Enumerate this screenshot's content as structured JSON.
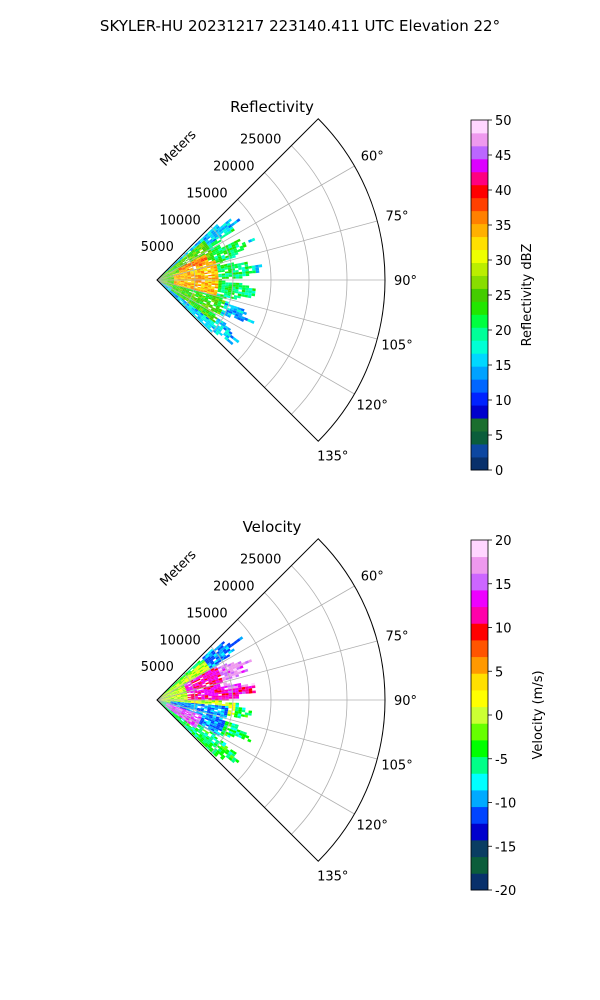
{
  "figure": {
    "suptitle": "SKYLER-HU  20231217  223140.411 UTC Elevation 22°"
  },
  "panels": [
    {
      "title": "Reflectivity",
      "range_axis_label": "Meters",
      "range_ticks": [
        "5000",
        "10000",
        "15000",
        "20000",
        "25000"
      ],
      "azimuth_ticks": [
        "60°",
        "75°",
        "90°",
        "105°",
        "120°",
        "135°"
      ],
      "colorbar": {
        "label": "Reflectivity dBZ",
        "ticks": [
          "0",
          "5",
          "10",
          "15",
          "20",
          "25",
          "30",
          "35",
          "40",
          "45",
          "50"
        ]
      }
    },
    {
      "title": "Velocity",
      "range_axis_label": "Meters",
      "range_ticks": [
        "5000",
        "10000",
        "15000",
        "20000",
        "25000"
      ],
      "azimuth_ticks": [
        "60°",
        "75°",
        "90°",
        "105°",
        "120°",
        "135°"
      ],
      "colorbar": {
        "label": "Velocity (m/s)",
        "ticks": [
          "-20",
          "-15",
          "-10",
          "-5",
          "0",
          "5",
          "10",
          "15",
          "20"
        ]
      }
    }
  ],
  "chart_data": [
    {
      "type": "heatmap",
      "projection": "polar-sector",
      "title": "Reflectivity",
      "azimuth_range_deg": [
        45,
        135
      ],
      "range_limits_m": [
        0,
        30000
      ],
      "range_ticks_m": [
        5000,
        10000,
        15000,
        20000,
        25000
      ],
      "azimuth_ticks_deg": [
        60,
        75,
        90,
        105,
        120,
        135
      ],
      "grid": true,
      "colorbar": {
        "label": "Reflectivity dBZ",
        "vmin": 0,
        "vmax": 50,
        "levels": 25
      },
      "colormap": [
        "#08306b",
        "#0d47a1",
        "#0b5d3b",
        "#1b6e2e",
        "#0000cd",
        "#0022ff",
        "#0066ff",
        "#00a2ff",
        "#00d8ff",
        "#00ffd5",
        "#00ff99",
        "#00ff40",
        "#22e600",
        "#44cc00",
        "#88dd00",
        "#bbee00",
        "#eeff00",
        "#ffe000",
        "#ffb000",
        "#ff8000",
        "#ff4000",
        "#ff0000",
        "#ff0080",
        "#dd00ff",
        "#bb66ff",
        "#ee99ee",
        "#ffd6ff"
      ],
      "echo_regions": [
        {
          "az": [
            47,
            133
          ],
          "range": [
            0,
            14000
          ],
          "value": 15
        },
        {
          "az": [
            55,
            105
          ],
          "range": [
            0,
            13000
          ],
          "value": 21
        },
        {
          "az": [
            50,
            115
          ],
          "range": [
            0,
            8000
          ],
          "value": 25
        },
        {
          "az": [
            70,
            105
          ],
          "range": [
            2000,
            8000
          ],
          "value": 34
        },
        {
          "az": [
            62,
            72
          ],
          "range": [
            3000,
            7000
          ],
          "value": 36
        },
        {
          "az": [
            105,
            125
          ],
          "range": [
            2000,
            9000
          ],
          "value": 24
        }
      ]
    },
    {
      "type": "heatmap",
      "projection": "polar-sector",
      "title": "Velocity",
      "azimuth_range_deg": [
        45,
        135
      ],
      "range_limits_m": [
        0,
        30000
      ],
      "range_ticks_m": [
        5000,
        10000,
        15000,
        20000,
        25000
      ],
      "azimuth_ticks_deg": [
        60,
        75,
        90,
        105,
        120,
        135
      ],
      "grid": true,
      "colorbar": {
        "label": "Velocity (m/s)",
        "vmin": -20,
        "vmax": 20,
        "levels": 20
      },
      "colormap": [
        "#08306b",
        "#0b5d3b",
        "#0a3d62",
        "#0000cd",
        "#0044ff",
        "#00aaff",
        "#00ffff",
        "#00ff88",
        "#00ff00",
        "#66ff00",
        "#ccff33",
        "#ffff00",
        "#ffe000",
        "#ff9900",
        "#ff5500",
        "#ff0000",
        "#ff00aa",
        "#ee00ff",
        "#cc66ff",
        "#ee99ee",
        "#ffd6ff"
      ],
      "echo_regions": [
        {
          "az": [
            47,
            133
          ],
          "range": [
            0,
            14000
          ],
          "value": -5
        },
        {
          "az": [
            50,
            100
          ],
          "range": [
            0,
            10000
          ],
          "value": 0
        },
        {
          "az": [
            60,
            90
          ],
          "range": [
            4000,
            13000
          ],
          "value": 12
        },
        {
          "az": [
            62,
            80
          ],
          "range": [
            9000,
            14000
          ],
          "value": 16
        },
        {
          "az": [
            95,
            120
          ],
          "range": [
            1500,
            9000
          ],
          "value": -10
        },
        {
          "az": [
            108,
            126
          ],
          "range": [
            1000,
            6000
          ],
          "value": 15
        },
        {
          "az": [
            47,
            60
          ],
          "range": [
            8000,
            14000
          ],
          "value": -10
        }
      ]
    }
  ]
}
